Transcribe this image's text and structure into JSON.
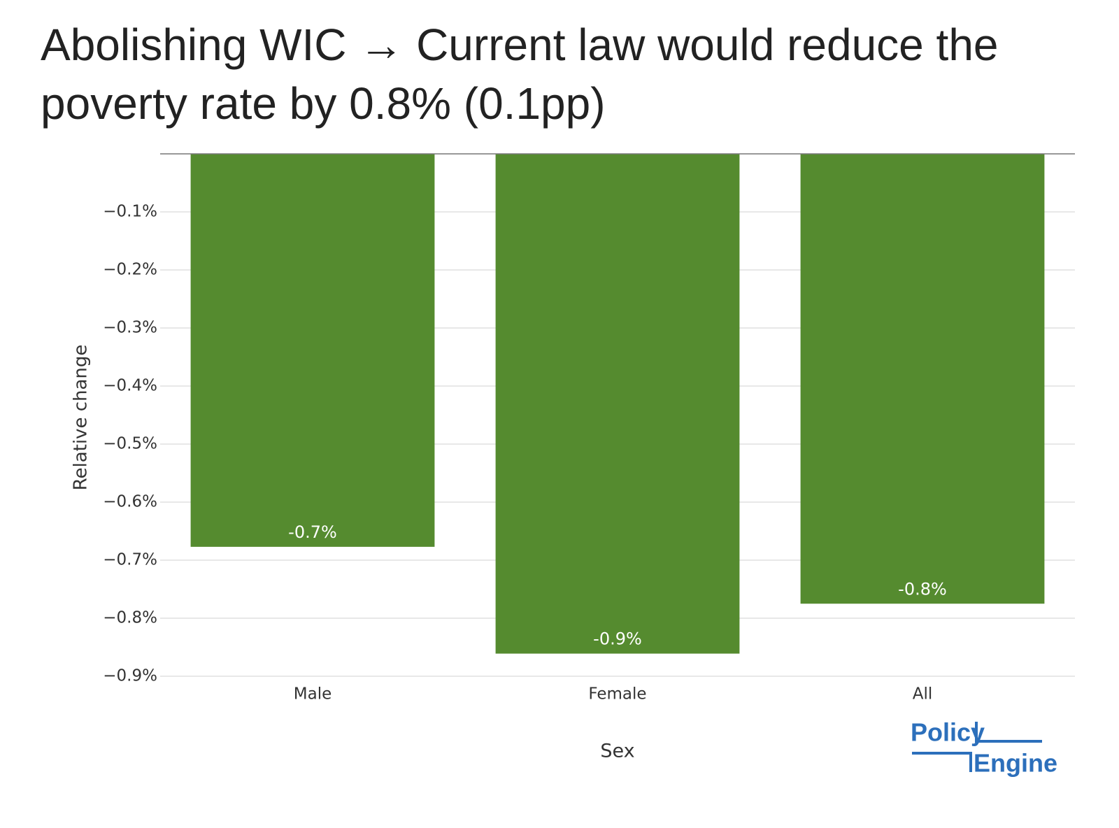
{
  "chart_data": {
    "type": "bar",
    "title": "Abolishing WIC → Current law would reduce the poverty rate by 0.8% (0.1pp)",
    "x_label": "Sex",
    "y_label": "Relative change",
    "categories": [
      "Male",
      "Female",
      "All"
    ],
    "values": [
      -0.677,
      -0.861,
      -0.775
    ],
    "value_labels": [
      "-0.7%",
      "-0.9%",
      "-0.8%"
    ],
    "color": "#558b2f",
    "ylim": [
      -0.9,
      0
    ],
    "yticks": [
      {
        "value": -0.1,
        "label": "−0.1%"
      },
      {
        "value": -0.2,
        "label": "−0.2%"
      },
      {
        "value": -0.3,
        "label": "−0.3%"
      },
      {
        "value": -0.4,
        "label": "−0.4%"
      },
      {
        "value": -0.5,
        "label": "−0.5%"
      },
      {
        "value": -0.6,
        "label": "−0.6%"
      },
      {
        "value": -0.7,
        "label": "−0.7%"
      },
      {
        "value": -0.8,
        "label": "−0.8%"
      },
      {
        "value": -0.9,
        "label": "−0.9%"
      }
    ],
    "grid": true,
    "logo": [
      "Policy",
      "Engine"
    ]
  }
}
